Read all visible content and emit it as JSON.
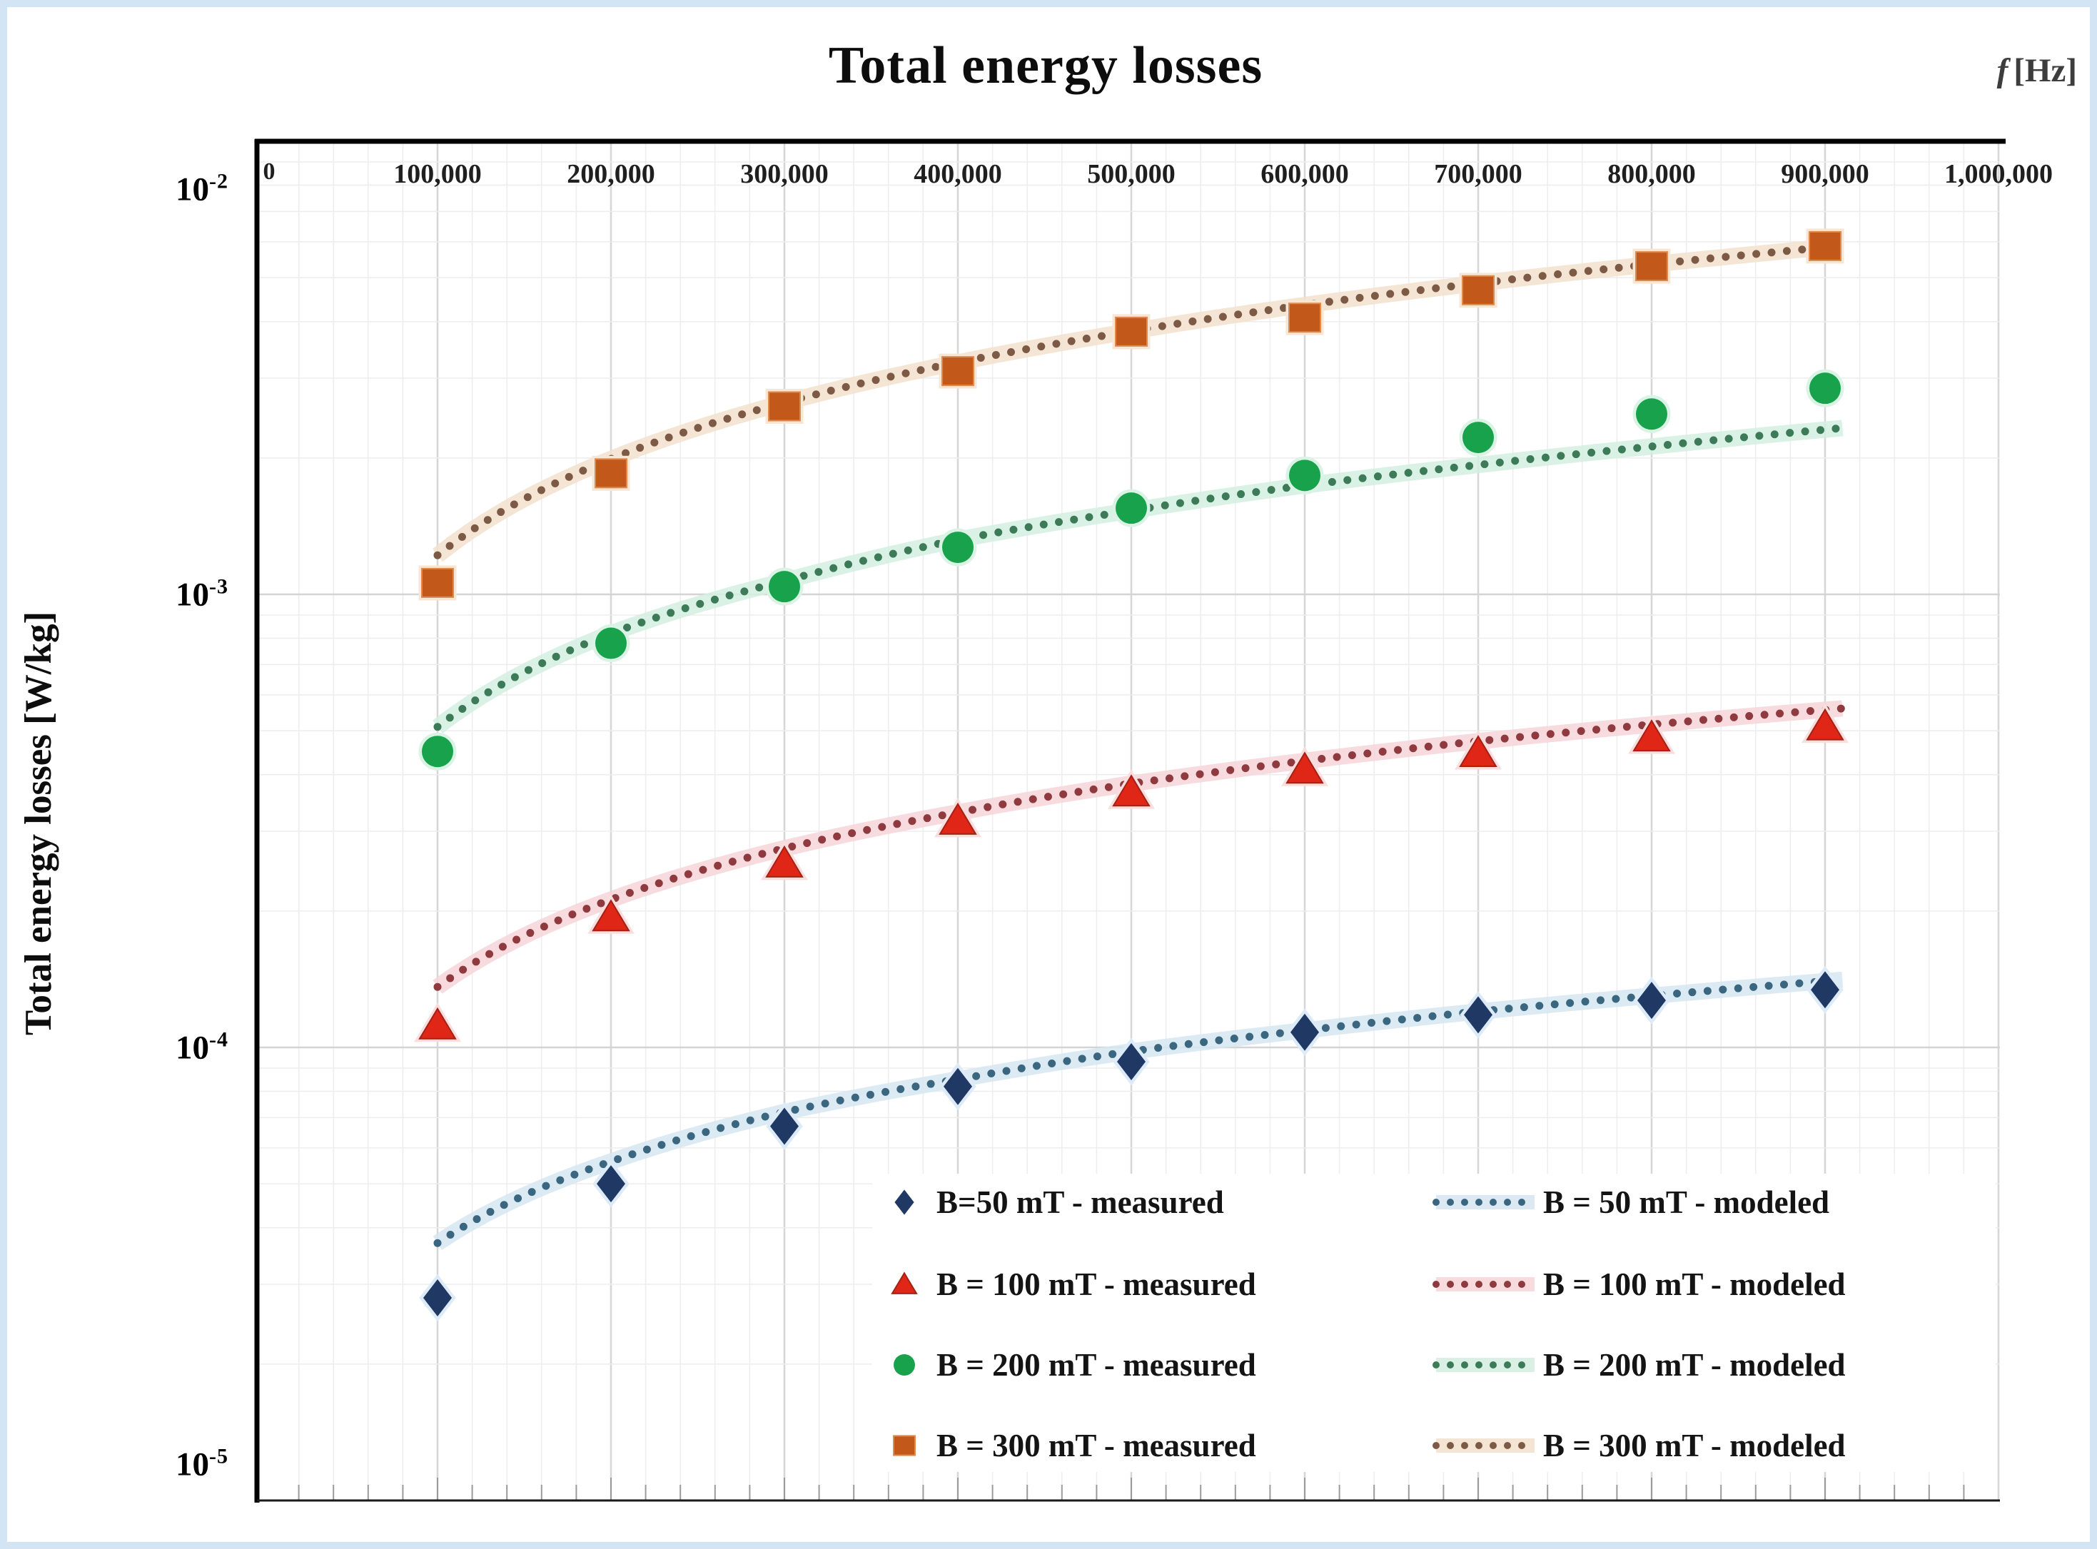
{
  "frame": {
    "border_color": "#d3e4f4",
    "background": "#ffffff"
  },
  "title": "Total energy losses",
  "x_axis_unit": {
    "f_symbol": "f",
    "unit": "[Hz]"
  },
  "y_axis_title": "Total energy losses [W/kg]",
  "x_origin_label": "0",
  "x_ticks": [
    "100,000",
    "200,000",
    "300,000",
    "400,000",
    "500,000",
    "600,000",
    "700,000",
    "800,000",
    "900,000",
    "1,000,000"
  ],
  "y_ticks": [
    {
      "base": "10",
      "exp": "-2"
    },
    {
      "base": "10",
      "exp": "-3"
    },
    {
      "base": "10",
      "exp": "-4"
    },
    {
      "base": "10",
      "exp": "-5"
    }
  ],
  "legend": {
    "rows": [
      {
        "measured_label": "B=50 mT - measured",
        "modeled_label": "B = 50 mT - modeled",
        "marker": "diamond",
        "marker_color": "#1f3864",
        "line_dot_color": "#3a677f",
        "halo_color": "#d6e6f2"
      },
      {
        "measured_label": "B = 100 mT - measured",
        "modeled_label": "B = 100 mT - modeled",
        "marker": "triangle",
        "marker_color": "#e02617",
        "line_dot_color": "#8f3a3e",
        "halo_color": "#f6d5d8"
      },
      {
        "measured_label": "B = 200 mT - measured",
        "modeled_label": "B = 200 mT - modeled",
        "marker": "circle",
        "marker_color": "#18a24c",
        "line_dot_color": "#3c7a58",
        "halo_color": "#d4eee0"
      },
      {
        "measured_label": "B = 300 mT - measured",
        "modeled_label": "B = 300 mT - modeled",
        "marker": "square",
        "marker_color": "#c2591b",
        "line_dot_color": "#7d5a46",
        "halo_color": "#f3e0cd"
      }
    ]
  },
  "chart_data": {
    "type": "scatter",
    "title": "Total energy losses",
    "xlabel": "f [Hz]",
    "ylabel": "Total energy losses [W/kg]",
    "x_axis": {
      "scale": "linear",
      "min": 0,
      "max": 1000000,
      "major_step": 100000,
      "minor_step": 20000
    },
    "y_axis": {
      "scale": "log",
      "min": 1e-05,
      "max": 0.01,
      "unit": "W/kg"
    },
    "grid": true,
    "legend_position": "inside bottom-right, no border",
    "x": [
      100000,
      200000,
      300000,
      400000,
      500000,
      600000,
      700000,
      800000,
      900000
    ],
    "series_measured": [
      {
        "name": "B=50 mT - measured",
        "marker": "diamond",
        "color": "#1f3864",
        "halo": "#dcebf7",
        "values": [
          2.8e-05,
          5e-05,
          6.7e-05,
          8.2e-05,
          9.3e-05,
          0.000108,
          0.000118,
          0.000127,
          0.000134
        ]
      },
      {
        "name": "B = 100 mT - measured",
        "marker": "triangle",
        "color": "#e02617",
        "halo": "#fadddd",
        "values": [
          0.000112,
          0.000194,
          0.000255,
          0.000317,
          0.000366,
          0.000411,
          0.000447,
          0.000484,
          0.000512
        ]
      },
      {
        "name": "B = 200 mT - measured",
        "marker": "circle",
        "color": "#18a24c",
        "halo": "#daf3e5",
        "values": [
          0.00045,
          0.00078,
          0.00104,
          0.00127,
          0.00155,
          0.00183,
          0.00222,
          0.0025,
          0.00285
        ]
      },
      {
        "name": "B = 300 mT - measured",
        "marker": "square",
        "color": "#c2591b",
        "halo": "#f8e6d4",
        "values": [
          0.00106,
          0.00185,
          0.0026,
          0.00311,
          0.0038,
          0.00408,
          0.00469,
          0.0053,
          0.00587
        ]
      }
    ],
    "series_modeled": [
      {
        "name": "B = 50 mT - modeled",
        "dot_color": "#3a677f",
        "halo": "#d6e6f2",
        "values": [
          3.7e-05,
          5.6e-05,
          7.2e-05,
          8.5e-05,
          9.8e-05,
          0.000109,
          0.00012,
          0.00013,
          0.00014
        ]
      },
      {
        "name": "B = 100 mT - modeled",
        "dot_color": "#8f3a3e",
        "halo": "#f6d5d8",
        "values": [
          0.000136,
          0.000212,
          0.000275,
          0.00033,
          0.000382,
          0.000429,
          0.000474,
          0.000516,
          0.000556
        ]
      },
      {
        "name": "B = 200 mT - modeled",
        "dot_color": "#3c7a58",
        "halo": "#d4eee0",
        "values": [
          0.00051,
          0.00082,
          0.00107,
          0.00132,
          0.00153,
          0.00174,
          0.00193,
          0.00212,
          0.00231
        ]
      },
      {
        "name": "B = 300 mT - modeled",
        "dot_color": "#7d5a46",
        "halo": "#f3e0cd",
        "values": [
          0.00122,
          0.00199,
          0.00265,
          0.00325,
          0.00381,
          0.00435,
          0.00486,
          0.00535,
          0.00583
        ]
      }
    ]
  }
}
